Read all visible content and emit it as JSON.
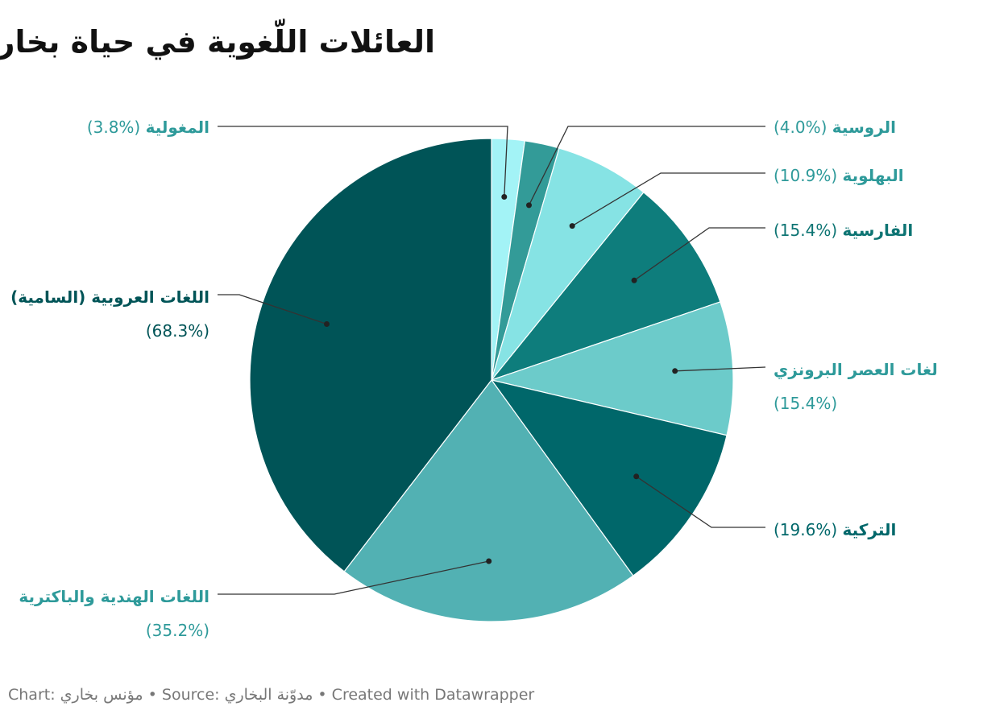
{
  "title": "العائلات اللّغوية في حياة بخارى",
  "footer": {
    "chart_prefix": "Chart:",
    "chart_author": "مؤنس بخاري",
    "sep1": " • ",
    "source_prefix": "Source:",
    "source_name": "مدوّنة البخاري",
    "sep2": " • ",
    "created": "Created with Datawrapper"
  },
  "chart_data": {
    "type": "pie",
    "start": "top",
    "direction": "clockwise",
    "slices": [
      {
        "label": "المغولية",
        "value_text": "(3.8%)",
        "value": 3.8,
        "color": "#a3f3f6",
        "label_color": "#2e9a9a"
      },
      {
        "label": "الروسية",
        "value_text": "(4.0%)",
        "value": 4.0,
        "color": "#339b98",
        "label_color": "#2e9a9a"
      },
      {
        "label": "البهلوية",
        "value_text": "(10.9%)",
        "value": 10.9,
        "color": "#86e3e4",
        "label_color": "#2e9a9a"
      },
      {
        "label": "الفارسية",
        "value_text": "(15.4%)",
        "value": 15.4,
        "color": "#0e7d7c",
        "label_color": "#0d7473"
      },
      {
        "label": "لغات العصر البرونزي",
        "value_text": "(15.4%)",
        "value": 15.4,
        "color": "#6ccbca",
        "label_color": "#2e9a9a"
      },
      {
        "label": "التركية",
        "value_text": "(19.6%)",
        "value": 19.6,
        "color": "#00676a",
        "label_color": "#00676a"
      },
      {
        "label": "اللغات الهندية والباكترية",
        "value_text": "(35.2%)",
        "value": 35.2,
        "color": "#52b1b3",
        "label_color": "#2e9a9a"
      },
      {
        "label": "اللغات العروبية (السامية)",
        "value_text": "(68.3%)",
        "value": 68.3,
        "color": "#005457",
        "label_color": "#005457"
      }
    ]
  }
}
